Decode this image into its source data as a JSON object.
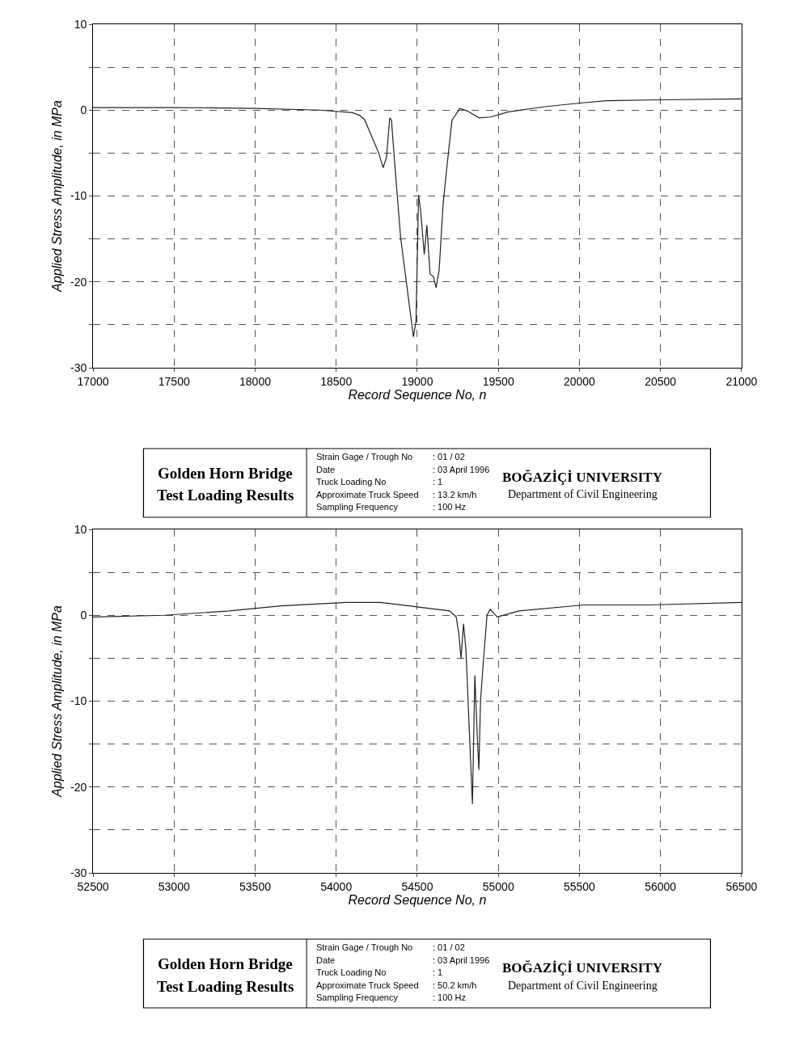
{
  "chart_data": [
    {
      "type": "line",
      "xlabel": "Record Sequence No, n",
      "ylabel": "Applied Stress Amplitude, in MPa",
      "color": "#222222",
      "x": [
        17000,
        17500,
        18000,
        18400,
        18600,
        18643,
        18675,
        18722,
        18762,
        18789,
        18810,
        18830,
        18841,
        18857,
        18897,
        18976,
        18992,
        19008,
        19020,
        19043,
        19059,
        19079,
        19100,
        19116,
        19135,
        19159,
        19182,
        19214,
        19262,
        19309,
        19381,
        19452,
        19563,
        19786,
        19992,
        20166,
        20500,
        21000
      ],
      "values": [
        0.3,
        0.3,
        0.2,
        0,
        -0.3,
        -0.6,
        -1.1,
        -3.2,
        -5.0,
        -6.7,
        -5.5,
        -0.9,
        -1.2,
        -5.3,
        -14.8,
        -26.4,
        -24.6,
        -9.9,
        -11.6,
        -16.8,
        -13.4,
        -19.1,
        -19.4,
        -20.7,
        -18.6,
        -11.0,
        -6.7,
        -1.2,
        0.2,
        -0.1,
        -0.9,
        -0.8,
        -0.2,
        0.4,
        0.8,
        1.1,
        1.2,
        1.3
      ],
      "xlim": [
        17000,
        21000
      ],
      "xticks": [
        17000,
        17500,
        18000,
        18500,
        19000,
        19500,
        20000,
        20500,
        21000
      ],
      "ylim": [
        -30,
        10
      ],
      "yticks": [
        -30,
        {
          "value": -25,
          "label": null
        },
        -20,
        {
          "value": -15,
          "label": null
        },
        -10,
        {
          "value": -5,
          "label": null
        },
        0,
        {
          "value": 5,
          "label": null
        },
        10
      ],
      "grid": true,
      "annotations": [
        "Golden Horn Bridge",
        "Test Loading Results",
        "Strain Gage / Trough No",
        ": 01 / 02",
        "Date",
        ": 03 April 1996",
        "Truck Loading No",
        ": 1",
        "Approximate Truck Speed",
        ": 13.2 km/h",
        "Sampling Frequency",
        ": 100 Hz",
        "BOĞAZİÇİ UNIVERSITY",
        "Department of Civil Engineering"
      ]
    },
    {
      "type": "line",
      "xlabel": "Record Sequence No, n",
      "ylabel": "Applied Stress Amplitude, in MPa",
      "color": "#222222",
      "x": [
        52500,
        52940,
        53340,
        53660,
        54060,
        54273,
        54487,
        54700,
        54740,
        54755,
        54770,
        54785,
        54800,
        54840,
        54855,
        54870,
        54880,
        54890,
        54905,
        54930,
        54950,
        54993,
        55127,
        55527,
        55927,
        56500
      ],
      "values": [
        -0.2,
        0,
        0.5,
        1.1,
        1.5,
        1.5,
        1.0,
        0.5,
        -0.2,
        -2,
        -5,
        -1,
        -4,
        -22,
        -7,
        -14,
        -18,
        -10,
        -6,
        0,
        0.7,
        -0.2,
        0.5,
        1.2,
        1.2,
        1.5
      ],
      "xlim": [
        52500,
        56500
      ],
      "xticks": [
        52500,
        53000,
        53500,
        54000,
        54500,
        55000,
        55500,
        56000,
        56500
      ],
      "ylim": [
        -30,
        10
      ],
      "yticks": [
        -30,
        {
          "value": -25,
          "label": null
        },
        -20,
        {
          "value": -15,
          "label": null
        },
        -10,
        {
          "value": -5,
          "label": null
        },
        0,
        {
          "value": 5,
          "label": null
        },
        10
      ],
      "grid": true,
      "annotations": [
        "Golden Horn Bridge",
        "Test Loading Results",
        "Strain Gage / Trough No",
        ": 01 / 02",
        "Date",
        ": 03 April 1996",
        "Truck Loading No",
        ": 1",
        "Approximate Truck Speed",
        ": 50.2 km/h",
        "Sampling Frequency",
        ": 100 Hz",
        "BOĞAZİÇİ UNIVERSITY",
        "Department of Civil Engineering"
      ]
    }
  ]
}
